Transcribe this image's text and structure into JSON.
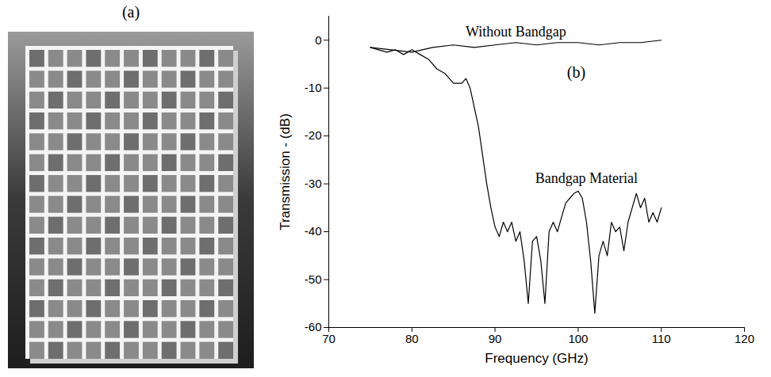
{
  "panel_labels": [
    "(a)",
    "(b)"
  ],
  "chart_data": {
    "type": "line",
    "x_label": "Frequency (GHz)",
    "y_label": "Transmission - (dB)",
    "xlim": [
      70,
      120
    ],
    "xticks": [
      70,
      80,
      90,
      100,
      110,
      120
    ],
    "ylim": [
      -60,
      5
    ],
    "yticks": [
      0,
      -10,
      -20,
      -30,
      -40,
      -50,
      -60
    ],
    "grid": false,
    "series": [
      {
        "name": "Without Bandgap",
        "color": "#000000",
        "x": [
          75,
          77.5,
          80,
          82.5,
          85,
          87.5,
          90,
          92.5,
          95,
          97.5,
          100,
          102.5,
          105,
          107.5,
          110
        ],
        "values": [
          -1.5,
          -2,
          -2.5,
          -1.5,
          -1,
          -1.5,
          -1,
          -0.5,
          -1,
          -0.5,
          -0.5,
          -1,
          -0.5,
          -0.5,
          0
        ]
      },
      {
        "name": "Bandgap Material",
        "color": "#000000",
        "x": [
          75,
          76,
          77,
          78,
          79,
          80,
          81,
          82,
          83,
          84,
          85,
          86,
          86.5,
          87,
          88,
          88.5,
          89,
          89.5,
          90,
          90.5,
          91,
          91.5,
          92,
          92.5,
          93,
          93.5,
          94,
          94.5,
          95,
          95.5,
          96,
          96.5,
          97,
          97.5,
          98,
          98.5,
          99,
          99.5,
          100,
          100.5,
          101,
          101.5,
          102,
          102.5,
          103,
          103.5,
          104,
          104.5,
          105,
          105.5,
          106,
          106.5,
          107,
          107.5,
          108,
          108.5,
          109,
          109.5,
          110
        ],
        "values": [
          -1.5,
          -2,
          -2.5,
          -2,
          -3,
          -2,
          -3,
          -4,
          -6,
          -7,
          -9,
          -9,
          -8,
          -10,
          -18,
          -24,
          -30,
          -35,
          -39,
          -41,
          -38,
          -40,
          -38,
          -42,
          -40,
          -46,
          -55,
          -42,
          -41,
          -46,
          -55,
          -40,
          -38,
          -40,
          -37,
          -34,
          -33,
          -32,
          -31.5,
          -33,
          -38,
          -46,
          -57,
          -45,
          -42,
          -45,
          -38,
          -40,
          -39,
          -44,
          -38,
          -35,
          -32,
          -35,
          -33,
          -38,
          -36,
          -38,
          -35
        ]
      }
    ]
  }
}
